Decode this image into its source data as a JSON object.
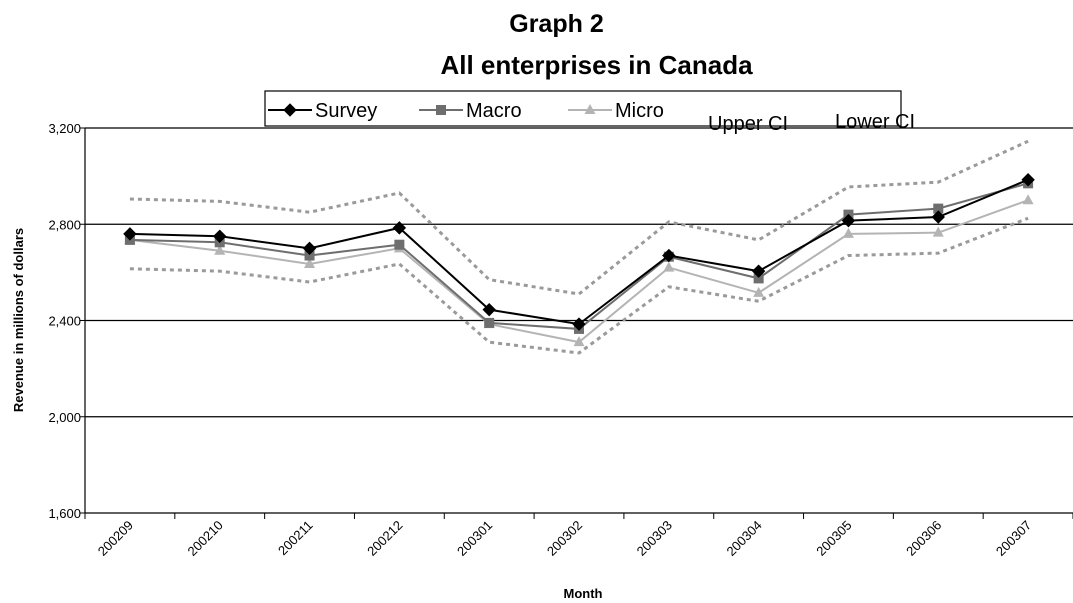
{
  "chart_data": {
    "type": "line",
    "title": "Graph 2",
    "subtitle": "All enterprises in Canada",
    "xlabel": "Month",
    "ylabel": "Revenue in millions of dollars",
    "ylim": [
      1600,
      3200
    ],
    "yticks": [
      "1,600",
      "2,000",
      "2,400",
      "2,800",
      "3,200"
    ],
    "ytick_values": [
      1600,
      2000,
      2400,
      2800,
      3200
    ],
    "grid": "horizontal",
    "legend": "top",
    "categories": [
      "200209",
      "200210",
      "200211",
      "200212",
      "200301",
      "200302",
      "200303",
      "200304",
      "200305",
      "200306",
      "200307"
    ],
    "series": [
      {
        "name": "Survey",
        "color": "#000000",
        "marker": "diamond",
        "dash": "solid",
        "values": [
          2760,
          2750,
          2700,
          2785,
          2445,
          2385,
          2670,
          2605,
          2815,
          2830,
          2985
        ]
      },
      {
        "name": "Macro",
        "color": "#6e6e6e",
        "marker": "square",
        "dash": "solid",
        "values": [
          2735,
          2725,
          2670,
          2715,
          2390,
          2365,
          2665,
          2575,
          2840,
          2865,
          2970
        ]
      },
      {
        "name": "Micro",
        "color": "#b4b4b4",
        "marker": "triangle",
        "dash": "solid",
        "values": [
          2735,
          2690,
          2635,
          2700,
          2385,
          2310,
          2620,
          2515,
          2760,
          2765,
          2900
        ]
      },
      {
        "name": "Upper CI",
        "color": "#9a9a9a",
        "marker": "none",
        "dash": "dotted",
        "values": [
          2905,
          2895,
          2850,
          2930,
          2570,
          2510,
          2810,
          2735,
          2955,
          2975,
          3145
        ]
      },
      {
        "name": "Lower CI",
        "color": "#9a9a9a",
        "marker": "none",
        "dash": "dotted",
        "values": [
          2615,
          2605,
          2560,
          2635,
          2310,
          2265,
          2540,
          2480,
          2670,
          2680,
          2825
        ]
      }
    ]
  }
}
